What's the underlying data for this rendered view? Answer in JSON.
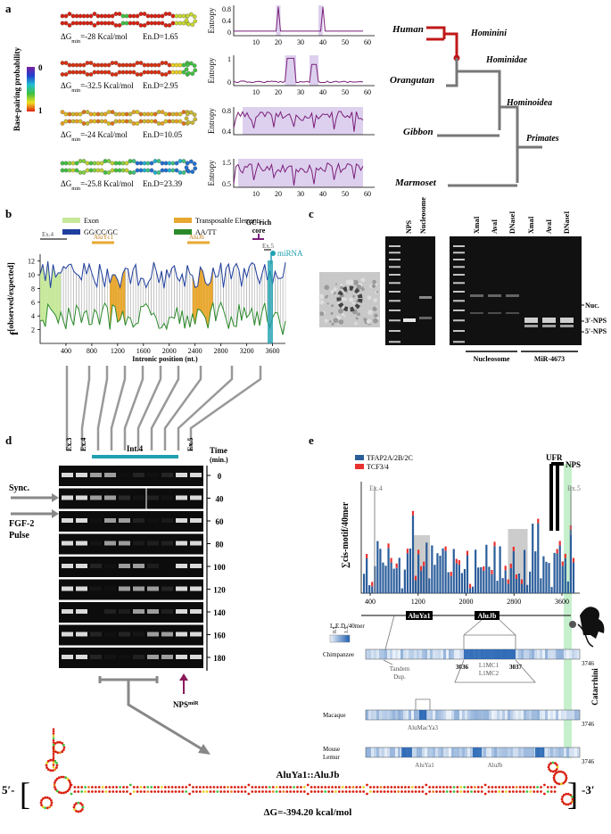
{
  "a": {
    "label": "a",
    "scale_title": "Base-pairing probability",
    "scale_min": "0",
    "scale_max": "1",
    "dg_symbol": "ΔG",
    "dg_sub": "min",
    "structures": [
      {
        "dg": "=-28 Kcal/mol",
        "end": "En.D=1.65"
      },
      {
        "dg": "=-32.5 Kcal/mol",
        "end": "En.D=2.95"
      },
      {
        "dg": "=-24 Kcal/mol",
        "end": "En.D=10.05"
      },
      {
        "dg": "=-25.8 Kcal/mol",
        "end": "En.D=23.39"
      }
    ],
    "entropy_label": "Entropy",
    "entropy_yticks": [
      [
        "0",
        "0.4",
        "0.8"
      ],
      [
        "0",
        "1"
      ],
      [
        "0.4",
        "0.8"
      ],
      [
        "0.5",
        "1.5"
      ]
    ],
    "entropy_xticks": [
      "10",
      "20",
      "30",
      "40",
      "50",
      "60"
    ],
    "species": [
      "Human",
      "Orangutan",
      "Gibbon",
      "Marmoset"
    ],
    "clades": [
      "Hominini",
      "Hominidae",
      "Hominoidea",
      "Primates"
    ]
  },
  "b": {
    "label": "b",
    "legend": [
      "Exon",
      "Transposable Elements",
      "GG/CC/GC",
      "AA/TT"
    ],
    "y_label": "f",
    "y_label_sup": "[observed/expected]",
    "yticks": [
      "2",
      "4",
      "6",
      "8",
      "10",
      "12"
    ],
    "xticks": [
      "400",
      "800",
      "1200",
      "1600",
      "2000",
      "2400",
      "2800",
      "3200",
      "3600"
    ],
    "x_label": "Intronic position (nt.)",
    "ex4": "Ex.4",
    "aluyc1": "AluYc1",
    "alujb": "AluJb",
    "gc_core": [
      "GC-rich",
      "core"
    ],
    "ex5": "Ex.5",
    "mirna": "miRNA"
  },
  "c": {
    "label": "c",
    "gel1_lanes": [
      "NPS",
      "Nucleosome"
    ],
    "gel2_lanes": [
      "XmaI",
      "AvaI",
      "DNaseI",
      "XmaI",
      "AvaI",
      "DNaseI"
    ],
    "bands": [
      "Nuc.",
      "3′-NPS",
      "5′-NPS"
    ],
    "groups": [
      "Nucleosome",
      "MiR-4673"
    ]
  },
  "d": {
    "label": "d",
    "ex3": "Ex.3",
    "ex4": "Ex.4",
    "int4": "Int.4",
    "ex5": "Ex.5",
    "time_label": "Time",
    "time_unit": "(min.)",
    "times": [
      "0",
      "40",
      "60",
      "80",
      "100",
      "120",
      "140",
      "160",
      "180"
    ],
    "sync": "Sync.",
    "fgf": [
      "FGF-2",
      "Pulse"
    ],
    "nps": "NPS",
    "nps_sup": "miR"
  },
  "e": {
    "label": "e",
    "legend": [
      "TFAP2A/2B/2C",
      "TCF3/4"
    ],
    "y_label": "∑cis-motif/40mer",
    "xticks": [
      "400",
      "1200",
      "2000",
      "2800",
      "3600"
    ],
    "ufr": "UFR",
    "nps": "NPS",
    "ex4": "Ex.4",
    "ex5": "Ex.5",
    "alu": [
      "AluYa1",
      "AluJb"
    ],
    "clade": "Catarrhini",
    "led_label": "L.E.D./40mer",
    "led_ticks": [
      "0.5",
      "1.5"
    ],
    "tracks": [
      {
        "name": "Chimpanzee",
        "end": "3746",
        "notes": [
          "Tandem",
          "Dup.",
          "L1MC1",
          "L1MC2",
          "3036",
          "3037"
        ]
      },
      {
        "name": "Macaque",
        "end": "3746",
        "notes": [
          "AluMacYa3"
        ]
      },
      {
        "name": "Mouse",
        "name2": "Lemur",
        "end": "3746",
        "notes": [
          "AluYa1",
          "AluJb"
        ]
      }
    ]
  },
  "bottom": {
    "five": "5′-",
    "title": "AluYa1::AluJb",
    "dg": "ΔG=-394.20 kcal/mol",
    "three": "-3′"
  }
}
